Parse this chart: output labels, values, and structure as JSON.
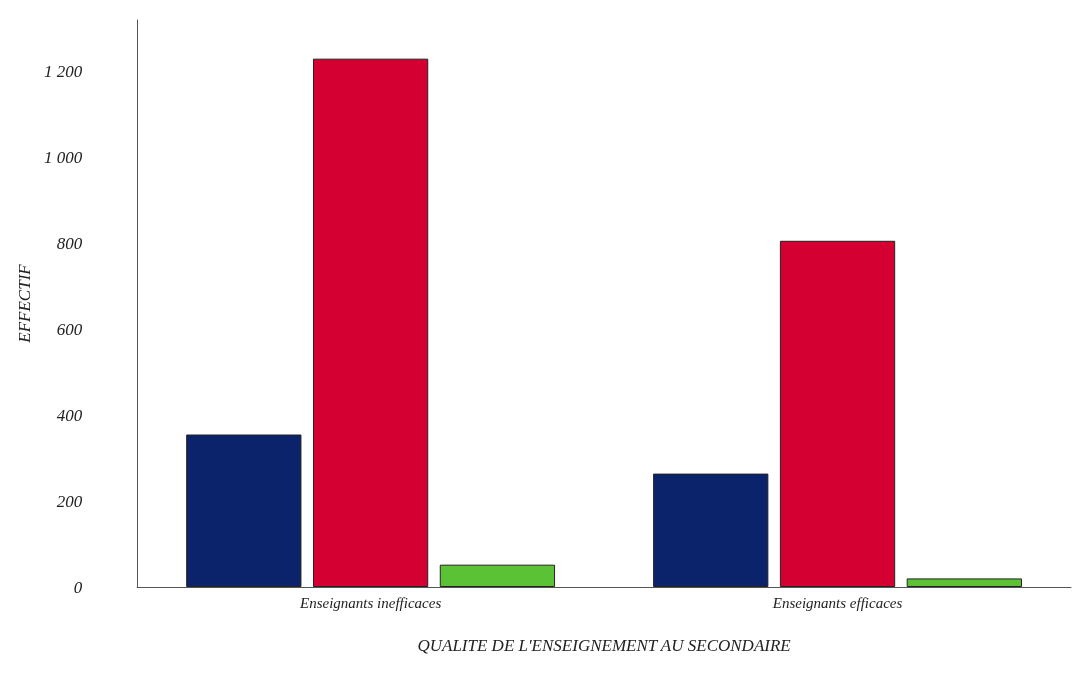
{
  "chart_data": {
    "type": "bar",
    "xlabel": "QUALITE DE L'ENSEIGNEMENT AU SECONDAIRE",
    "ylabel": "EFFECTIF",
    "categories": [
      "Enseignants inefficaces",
      "Enseignants efficaces"
    ],
    "series": [
      {
        "color": "#0b236b",
        "values": [
          355,
          264
        ]
      },
      {
        "color": "#d50032",
        "values": [
          1230,
          806
        ]
      },
      {
        "color": "#5bc236",
        "values": [
          52,
          20
        ]
      }
    ],
    "ylim": [
      0,
      1320
    ],
    "yticks": [
      0,
      200,
      400,
      600,
      800,
      {
        "value": 1000,
        "label": "1 000"
      },
      {
        "value": 1200,
        "label": "1 200"
      }
    ],
    "grid": false
  }
}
